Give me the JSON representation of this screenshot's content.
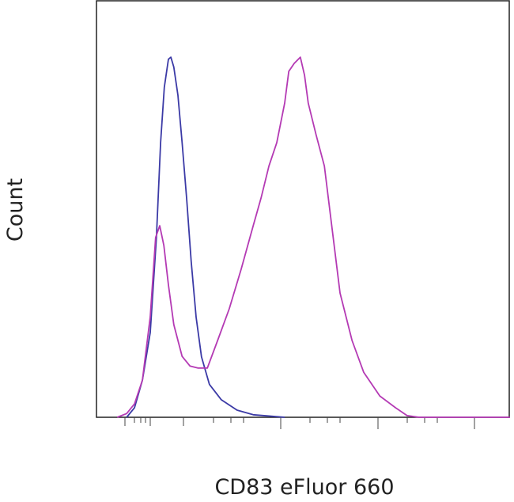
{
  "chart_data": {
    "type": "line",
    "x_label": "CD83 eFluor 660",
    "y_label": "Count",
    "xlim": [
      0,
      100
    ],
    "ylim": [
      0,
      100
    ],
    "series": [
      {
        "color": "#3b3aa6",
        "x": [
          7.3,
          9.2,
          11.1,
          13.0,
          14.5,
          15.5,
          16.4,
          17.4,
          18.0,
          18.7,
          19.7,
          20.7,
          21.8,
          22.9,
          24.1,
          25.4,
          27.3,
          30.2,
          34.0,
          37.9,
          45.5
        ],
        "values": [
          0,
          2.3,
          8.9,
          20.3,
          43.1,
          65.8,
          79.1,
          85.8,
          86.3,
          83.9,
          77.2,
          65.8,
          52.5,
          37.3,
          24.0,
          14.5,
          7.9,
          4.2,
          1.7,
          0.6,
          0
        ]
      },
      {
        "color": "#b43ab4",
        "x": [
          5.0,
          7.3,
          9.2,
          11.1,
          13.0,
          14.3,
          15.3,
          16.3,
          17.4,
          18.7,
          20.7,
          22.6,
          24.5,
          26.8,
          29.3,
          32.1,
          35.0,
          37.9,
          39.8,
          41.7,
          43.6,
          45.5,
          46.5,
          47.8,
          49.3,
          50.3,
          51.2,
          53.1,
          55.1,
          57.0,
          58.9,
          61.8,
          64.6,
          68.5,
          72.3,
          75.1,
          78.0,
          100
        ],
        "values": [
          0,
          0.9,
          3.2,
          8.9,
          24.1,
          43.1,
          45.9,
          41.2,
          31.7,
          22.2,
          14.6,
          12.3,
          11.8,
          11.8,
          18.4,
          26.0,
          35.5,
          45.9,
          52.6,
          60.2,
          65.8,
          75.3,
          82.9,
          84.8,
          86.3,
          82.0,
          75.3,
          67.7,
          60.2,
          45.0,
          29.8,
          18.4,
          10.8,
          5.1,
          2.3,
          0.4,
          0,
          0
        ]
      }
    ]
  }
}
